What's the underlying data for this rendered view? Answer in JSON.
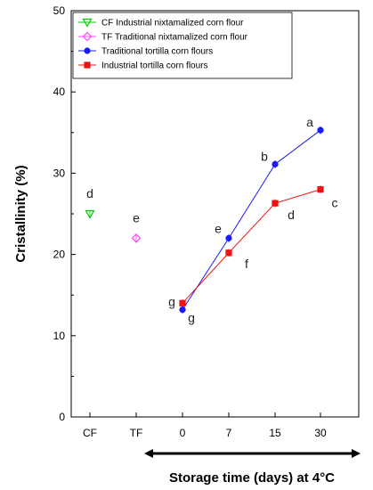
{
  "chart_data": {
    "type": "scatter",
    "ylabel": "Cristallinity (%)",
    "xlabel": "Storage time (days) at 4°C",
    "ylim": [
      0,
      50
    ],
    "yticks": [
      0,
      10,
      20,
      30,
      40,
      50
    ],
    "categories": [
      "CF",
      "TF",
      "0",
      "7",
      "15",
      "30"
    ],
    "legend_position": "top-left",
    "series": [
      {
        "name": "CF Industrial nixtamalized corn flour",
        "color": "#00cc00",
        "marker": "triangle-down-open",
        "line": false,
        "points": [
          {
            "category": "CF",
            "value": 25.0,
            "label": "d"
          }
        ]
      },
      {
        "name": "TF Traditional nixtamalized corn flour",
        "color": "#ff44ff",
        "marker": "diamond-open",
        "line": false,
        "points": [
          {
            "category": "TF",
            "value": 22.0,
            "label": "e"
          }
        ]
      },
      {
        "name": "Traditional tortilla corn flours",
        "color": "#1a1aff",
        "marker": "circle",
        "line": true,
        "points": [
          {
            "category": "0",
            "value": 13.2,
            "label": "g"
          },
          {
            "category": "7",
            "value": 22.0,
            "label": "e"
          },
          {
            "category": "15",
            "value": 31.1,
            "label": "b"
          },
          {
            "category": "30",
            "value": 35.3,
            "label": "a"
          }
        ]
      },
      {
        "name": "Industrial tortilla corn flours",
        "color": "#ee1111",
        "marker": "square",
        "line": true,
        "points": [
          {
            "category": "0",
            "value": 14.0,
            "label": "g"
          },
          {
            "category": "7",
            "value": 20.2,
            "label": "f"
          },
          {
            "category": "15",
            "value": 26.3,
            "label": "d"
          },
          {
            "category": "30",
            "value": 28.0,
            "label": "c"
          }
        ]
      }
    ]
  }
}
